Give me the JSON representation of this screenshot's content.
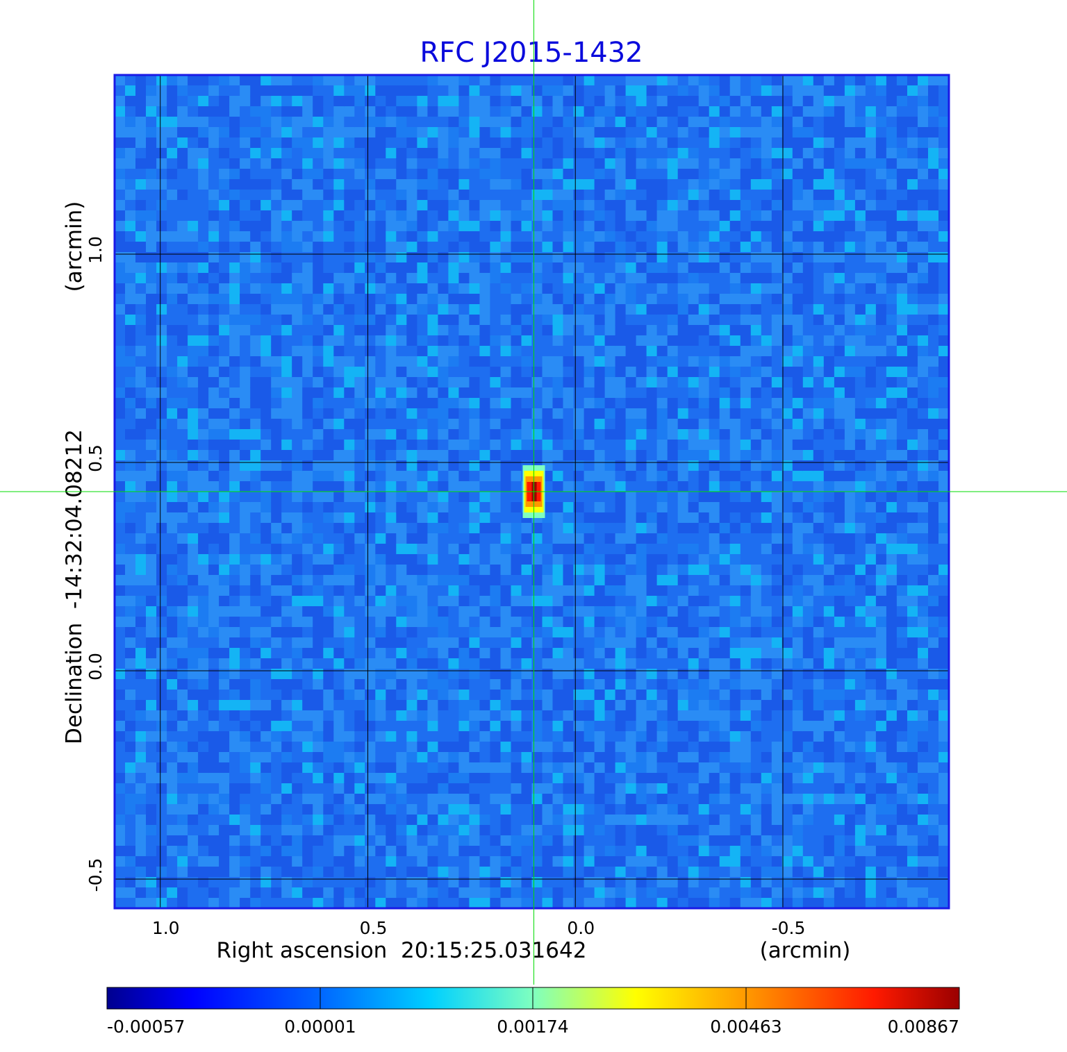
{
  "chart_data": {
    "type": "heatmap",
    "title": "RFC J2015-1432",
    "title_color": "#0a0adc",
    "x_axis": {
      "label": "Right ascension  20:15:25.031642",
      "unit_label": "(arcmin)",
      "ticks": [
        1.0,
        0.5,
        0.0,
        -0.5
      ],
      "tick_labels": [
        "1.0",
        "0.5",
        "0.0",
        "-0.5"
      ],
      "range": [
        1.11,
        -0.9
      ]
    },
    "y_axis": {
      "label": "Declination  -14:32:04.08212",
      "unit_label": "(arcmin)",
      "ticks": [
        1.0,
        0.5,
        0.0,
        -0.5
      ],
      "tick_labels": [
        "1.0",
        "0.5",
        "0.0",
        "-0.5"
      ],
      "range": [
        -0.57,
        1.43
      ]
    },
    "grid": true,
    "crosshair": {
      "x": 0.1,
      "y": 0.43,
      "color": "#00dd00"
    },
    "source_peak": {
      "x": 0.1,
      "y": 0.43,
      "value": 0.00867
    },
    "colorbar": {
      "colormap": "jet",
      "tick_labels": [
        "-0.00057",
        "0.00001",
        "0.00174",
        "0.00463",
        "0.00867"
      ],
      "range": [
        -0.00057,
        0.00867
      ]
    },
    "colors": {
      "frame": "#1a1ae6",
      "background_noise": [
        "#1e6ef0",
        "#2a8cf5",
        "#14b4f5"
      ]
    }
  }
}
